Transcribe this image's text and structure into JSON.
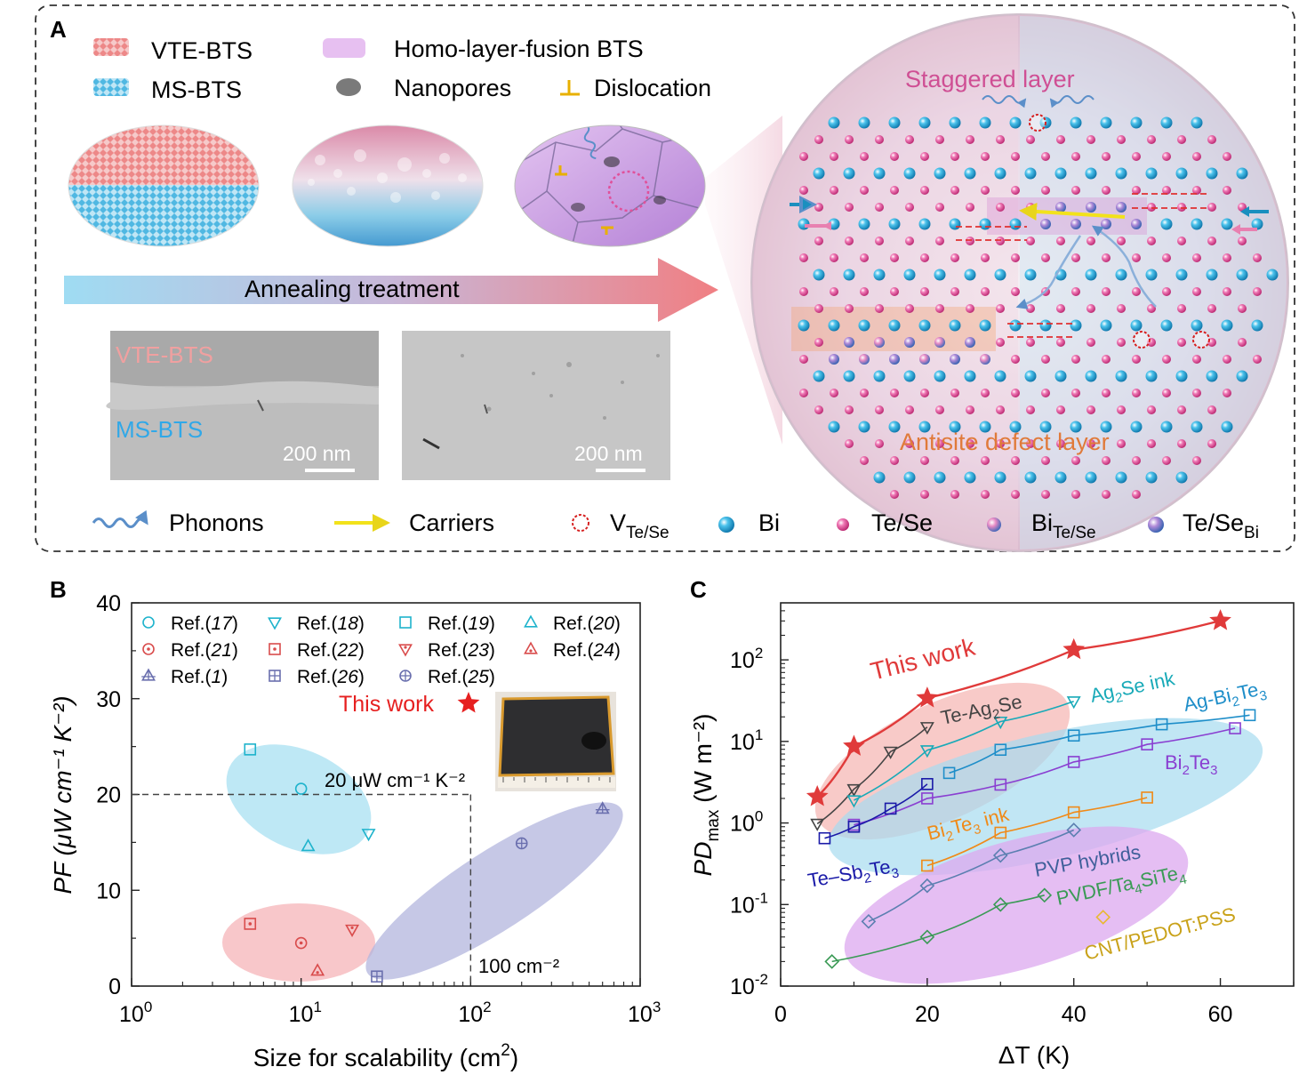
{
  "panelA": {
    "label": "A",
    "legend_top": {
      "vte": "VTE-BTS",
      "ms": "MS-BTS",
      "fusion": "Homo-layer-fusion BTS",
      "nanopores": "Nanopores",
      "dislocation": "Dislocation"
    },
    "annealing": "Annealing treatment",
    "sem_left_label_top": "VTE-BTS",
    "sem_left_label_bottom": "MS-BTS",
    "scale_left": "200 nm",
    "scale_right": "200 nm",
    "staggered": "Staggered layer",
    "antisite": "Antisite defect layer",
    "legend_bottom": {
      "phonons": "Phonons",
      "carriers": "Carriers",
      "vac_main": "V",
      "vac_sub": "Te/Se",
      "bi": "Bi",
      "tese": "Te/Se",
      "bi_anti_main": "Bi",
      "bi_anti_sub": "Te/Se",
      "tese_anti_main": "Te/Se",
      "tese_anti_sub": "Bi"
    },
    "colors": {
      "bi": "#1aa3d6",
      "tese": "#e0509a",
      "vac": "#d62020",
      "carrier": "#f2e21b",
      "phonon": "#5b8fc9"
    }
  },
  "panelB": {
    "label": "B",
    "chart_data": {
      "type": "scatter",
      "xscale": "log",
      "xlim": [
        1,
        1000
      ],
      "ylim": [
        0,
        40
      ],
      "xlabel": "Size for scalability (cm",
      "xlabel_sup": "2",
      "xlabel_end": ")",
      "ylabel": "PF (μW cm⁻¹ K⁻²)",
      "xticks": [
        {
          "v": 1,
          "base": "10",
          "exp": "0"
        },
        {
          "v": 10,
          "base": "10",
          "exp": "1"
        },
        {
          "v": 100,
          "base": "10",
          "exp": "2"
        },
        {
          "v": 1000,
          "base": "10",
          "exp": "3"
        }
      ],
      "yticks": [
        "0",
        "10",
        "20",
        "30",
        "40"
      ],
      "series": [
        {
          "name": "Ref.",
          "num": "17",
          "marker": "circle",
          "color": "#1eb3cc",
          "points": [
            [
              10,
              20.6
            ]
          ]
        },
        {
          "name": "Ref.",
          "num": "18",
          "marker": "tri-down",
          "color": "#1eb3cc",
          "points": [
            [
              25,
              15.9
            ]
          ]
        },
        {
          "name": "Ref.",
          "num": "19",
          "marker": "square",
          "color": "#1eb3cc",
          "points": [
            [
              5,
              24.7
            ]
          ]
        },
        {
          "name": "Ref.",
          "num": "20",
          "marker": "tri-up",
          "color": "#1eb3cc",
          "points": [
            [
              11,
              14.6
            ]
          ]
        },
        {
          "name": "Ref.",
          "num": "21",
          "marker": "circle-dot",
          "color": "#d94c4c",
          "points": [
            [
              10,
              4.5
            ]
          ]
        },
        {
          "name": "Ref.",
          "num": "22",
          "marker": "square-dot",
          "color": "#d94c4c",
          "points": [
            [
              5,
              6.5
            ]
          ]
        },
        {
          "name": "Ref.",
          "num": "23",
          "marker": "tri-down-dot",
          "color": "#d94c4c",
          "points": [
            [
              20,
              5.9
            ]
          ]
        },
        {
          "name": "Ref.",
          "num": "24",
          "marker": "tri-up-dot",
          "color": "#d94c4c",
          "points": [
            [
              12.5,
              1.6
            ]
          ]
        },
        {
          "name": "Ref.",
          "num": "1",
          "marker": "tri-up-plus",
          "color": "#6a6fae",
          "points": [
            [
              600,
              18.5
            ]
          ]
        },
        {
          "name": "Ref.",
          "num": "26",
          "marker": "square-plus",
          "color": "#6a6fae",
          "points": [
            [
              28,
              1.0
            ]
          ]
        },
        {
          "name": "Ref.",
          "num": "25",
          "marker": "circle-plus",
          "color": "#6a6fae",
          "points": [
            [
              200,
              14.9
            ]
          ]
        }
      ],
      "this_work": {
        "label": "This work",
        "color": "#e62020"
      },
      "annotation_pf": "20 μW cm⁻¹ K⁻²",
      "annotation_size": "100 cm⁻²",
      "guide": {
        "x": 100,
        "y": 20
      }
    }
  },
  "panelC": {
    "label": "C",
    "chart_data": {
      "type": "line",
      "yscale": "log",
      "xlim": [
        0,
        70
      ],
      "ylim": [
        0.01,
        500
      ],
      "xlabel": "ΔT (K)",
      "ylabel_main": "PD",
      "ylabel_sub": "max",
      "ylabel_unit": "(W m⁻²)",
      "xticks": [
        "0",
        "20",
        "40",
        "60"
      ],
      "yticks": [
        {
          "v": 0.01,
          "base": "10",
          "exp": "-2"
        },
        {
          "v": 0.1,
          "base": "10",
          "exp": "-1"
        },
        {
          "v": 1,
          "base": "10",
          "exp": "0"
        },
        {
          "v": 10,
          "base": "10",
          "exp": "1"
        },
        {
          "v": 100,
          "base": "10",
          "exp": "2"
        }
      ],
      "series": [
        {
          "name": "This work",
          "color": "#e03a3a",
          "marker": "star",
          "x": [
            5,
            10,
            20,
            40,
            60
          ],
          "y": [
            2.1,
            8.7,
            34,
            133,
            302
          ]
        },
        {
          "name": "Te-Ag2Se",
          "color": "#444444",
          "marker": "tri-down",
          "x": [
            5,
            10,
            15,
            20
          ],
          "y": [
            0.98,
            2.6,
            7.5,
            15
          ]
        },
        {
          "name": "Ag2Se ink",
          "color": "#19aab8",
          "marker": "tri-down",
          "x": [
            10,
            20,
            30,
            40
          ],
          "y": [
            1.9,
            7.8,
            17.5,
            31
          ]
        },
        {
          "name": "Ag-Bi2Te3",
          "color": "#1e8ec9",
          "marker": "square",
          "x": [
            23,
            30,
            40,
            52,
            64
          ],
          "y": [
            4.1,
            7.9,
            11.8,
            16.2,
            21
          ]
        },
        {
          "name": "Bi2Te3",
          "color": "#8a3fd1",
          "marker": "square",
          "x": [
            10,
            20,
            30,
            40,
            50,
            62
          ],
          "y": [
            0.95,
            2.0,
            2.95,
            5.6,
            9.2,
            14.5
          ]
        },
        {
          "name": "Te-Sb2Te3",
          "color": "#1a1aa8",
          "marker": "square",
          "x": [
            6,
            10,
            15,
            20
          ],
          "y": [
            0.65,
            0.9,
            1.5,
            3.0
          ]
        },
        {
          "name": "Bi2Te3 ink",
          "color": "#f08a18",
          "marker": "square",
          "x": [
            20,
            30,
            40,
            50
          ],
          "y": [
            0.3,
            0.76,
            1.35,
            2.05
          ]
        },
        {
          "name": "PVP hybrids",
          "color": "#5b7fb0",
          "marker": "diamond",
          "x": [
            12,
            20,
            30,
            40
          ],
          "y": [
            0.062,
            0.17,
            0.4,
            0.82
          ]
        },
        {
          "name": "PVDF/Ta4SiTe4",
          "color": "#3a9a55",
          "marker": "diamond",
          "x": [
            7,
            20,
            30,
            36
          ],
          "y": [
            0.02,
            0.04,
            0.1,
            0.13
          ]
        },
        {
          "name": "CNT/PEDOT:PSS",
          "color": "#e8b832",
          "marker": "diamond",
          "x": [
            44
          ],
          "y": [
            0.07
          ]
        }
      ],
      "labels": {
        "this_work": "This work",
        "te_ag2se_pre": "Te-Ag",
        "te_ag2se_sub": "2",
        "te_ag2se_post": "Se",
        "ag2se_pre": "Ag",
        "ag2se_sub": "2",
        "ag2se_post": "Se ink",
        "agbi_pre": "Ag-Bi",
        "agbi_sub1": "2",
        "agbi_mid": "Te",
        "agbi_sub2": "3",
        "bi_pre": "Bi",
        "bi_sub1": "2",
        "bi_mid": "Te",
        "bi_sub2": "3",
        "bi_ink_pre": "Bi",
        "bi_ink_sub1": "2",
        "bi_ink_mid": "Te",
        "bi_ink_sub2": "3",
        "bi_ink_post": " ink",
        "tesb_pre": "Te–Sb",
        "tesb_sub1": "2",
        "tesb_mid": "Te",
        "tesb_sub2": "3",
        "pvp": "PVP hybrids",
        "pvdf_pre": "PVDF/Ta",
        "pvdf_sub1": "4",
        "pvdf_mid": "SiTe",
        "pvdf_sub2": "4",
        "cnt": "CNT/PEDOT:PSS"
      }
    }
  }
}
